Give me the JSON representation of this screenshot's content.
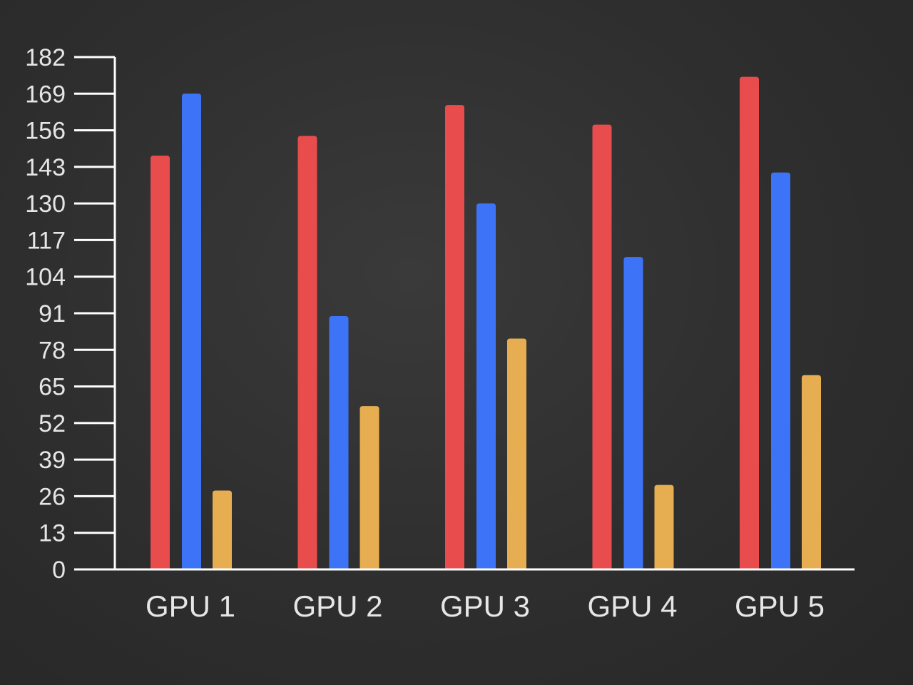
{
  "chart_data": {
    "type": "bar",
    "title": "",
    "xlabel": "",
    "ylabel": "",
    "categories": [
      "GPU 1",
      "GPU 2",
      "GPU 3",
      "GPU 4",
      "GPU 5"
    ],
    "series": [
      {
        "color": "#e84c4c",
        "values": [
          147,
          154,
          165,
          158,
          175
        ]
      },
      {
        "color": "#3d74f7",
        "values": [
          169,
          90,
          130,
          111,
          141
        ]
      },
      {
        "color": "#e6ae50",
        "values": [
          28,
          58,
          82,
          30,
          69
        ]
      }
    ],
    "ylim": [
      0,
      182
    ],
    "yticks": [
      "0",
      "13",
      "26",
      "39",
      "52",
      "65",
      "78",
      "91",
      "104",
      "117",
      "130",
      "143",
      "156",
      "169",
      "182"
    ],
    "grid": false,
    "legend": "none",
    "colors": {
      "axis": "#ffffff",
      "text": "#e6e6e6"
    }
  }
}
